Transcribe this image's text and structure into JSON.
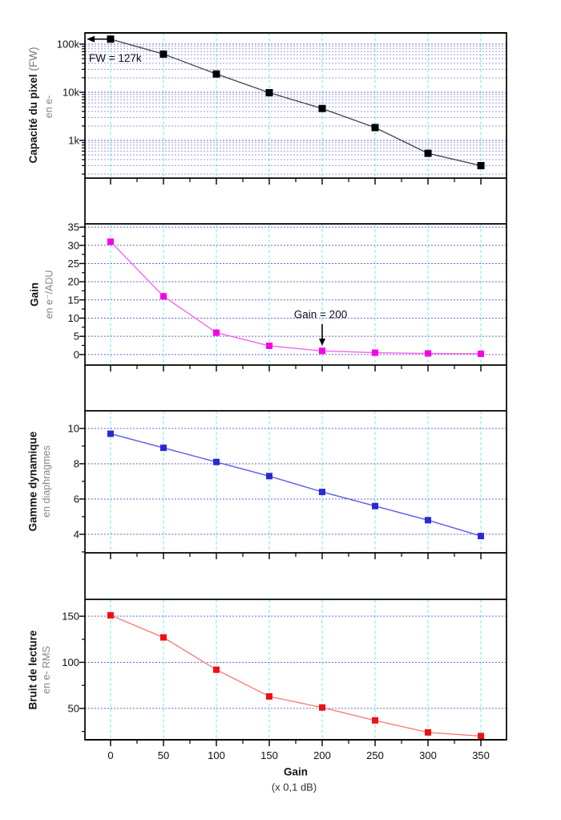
{
  "figure": {
    "background": "#ffffff",
    "frame_color": "#000000",
    "grid": {
      "h_major_color": "#6666d6",
      "h_minor_color": "#9a9ae8",
      "v_color": "#7de8e8"
    },
    "x_axis": {
      "title": "Gain",
      "subtitle": "(x 0,1 dB)",
      "xlim": [
        -24.2,
        374.2
      ],
      "major_ticks": [
        0,
        50,
        100,
        150,
        200,
        250,
        300,
        350
      ],
      "tick_labels": [
        "0",
        "50",
        "100",
        "150",
        "200",
        "250",
        "300",
        "350"
      ],
      "minor_ticks": [
        25,
        75,
        125,
        175,
        225,
        275,
        325
      ]
    }
  },
  "chart_data": [
    {
      "type": "line",
      "series_name": "capacite-du-pixel",
      "ylabel": "Capacité du pixel",
      "ylabel_suffix": "(FW)",
      "ylabel_sub": "en e-",
      "yscale": "log",
      "ylim": [
        165,
        171000
      ],
      "yticks": [
        100000,
        10000,
        1000
      ],
      "ytick_labels": [
        "100k",
        "10k",
        "1k"
      ],
      "y_minor": [
        90000,
        80000,
        70000,
        60000,
        50000,
        40000,
        30000,
        20000,
        9000,
        8000,
        7000,
        6000,
        5000,
        4000,
        3000,
        2000,
        900,
        800,
        700,
        600,
        500,
        400,
        300,
        200
      ],
      "x": [
        0,
        50,
        100,
        150,
        200,
        250,
        300,
        350
      ],
      "y": [
        127000,
        62000,
        24000,
        9800,
        4600,
        1850,
        540,
        300
      ],
      "marker_color": "#000000",
      "line_color": "#4d4d4d",
      "marker_size": 9,
      "annotation": "FW = 127k"
    },
    {
      "type": "line",
      "series_name": "gain",
      "ylabel": "Gain",
      "ylabel_sub": "en e⁻/ADU",
      "yscale": "linear",
      "ylim": [
        -2.9,
        35.9
      ],
      "yticks": [
        35,
        30,
        25,
        20,
        15,
        10,
        5,
        0
      ],
      "ytick_labels": [
        "35",
        "30",
        "25",
        "20",
        "15",
        "10",
        "5",
        "0"
      ],
      "y_minor": [
        2.5,
        7.5,
        12.5,
        17.5,
        22.5,
        27.5,
        32.5
      ],
      "x": [
        0,
        50,
        100,
        150,
        200,
        250,
        300,
        350
      ],
      "y": [
        31,
        16,
        6,
        2.4,
        1.0,
        0.5,
        0.3,
        0.2
      ],
      "marker_color": "#f700e8",
      "line_color": "#fa64e6",
      "marker_size": 8,
      "annotation": "Gain = 200"
    },
    {
      "type": "line",
      "series_name": "gamme-dynamique",
      "ylabel": "Gamme dynamique",
      "ylabel_sub": "en diaphragmes",
      "yscale": "linear",
      "ylim": [
        2.95,
        11.0
      ],
      "yticks": [
        10,
        8,
        6,
        4
      ],
      "ytick_labels": [
        "10",
        "8",
        "6",
        "4"
      ],
      "y_minor": [
        3,
        5,
        7,
        9
      ],
      "x": [
        0,
        50,
        100,
        150,
        200,
        250,
        300,
        350
      ],
      "y": [
        9.7,
        8.9,
        8.1,
        7.3,
        6.4,
        5.6,
        4.8,
        3.9
      ],
      "marker_color": "#2a2ad0",
      "line_color": "#5c5ce6",
      "marker_size": 8
    },
    {
      "type": "line",
      "series_name": "bruit-de-lecture",
      "ylabel": "Bruit de lecture",
      "ylabel_sub": "en e- RMS",
      "yscale": "linear",
      "ylim": [
        16.0,
        168.3
      ],
      "yticks": [
        150,
        100,
        50
      ],
      "ytick_labels": [
        "150",
        "100",
        "50"
      ],
      "y_minor": [
        25,
        75,
        125
      ],
      "x": [
        0,
        50,
        100,
        150,
        200,
        250,
        300,
        350
      ],
      "y": [
        151,
        127,
        92,
        63,
        51,
        37,
        24,
        20
      ],
      "marker_color": "#ee1111",
      "line_color": "#f97c7c",
      "marker_size": 8
    }
  ]
}
